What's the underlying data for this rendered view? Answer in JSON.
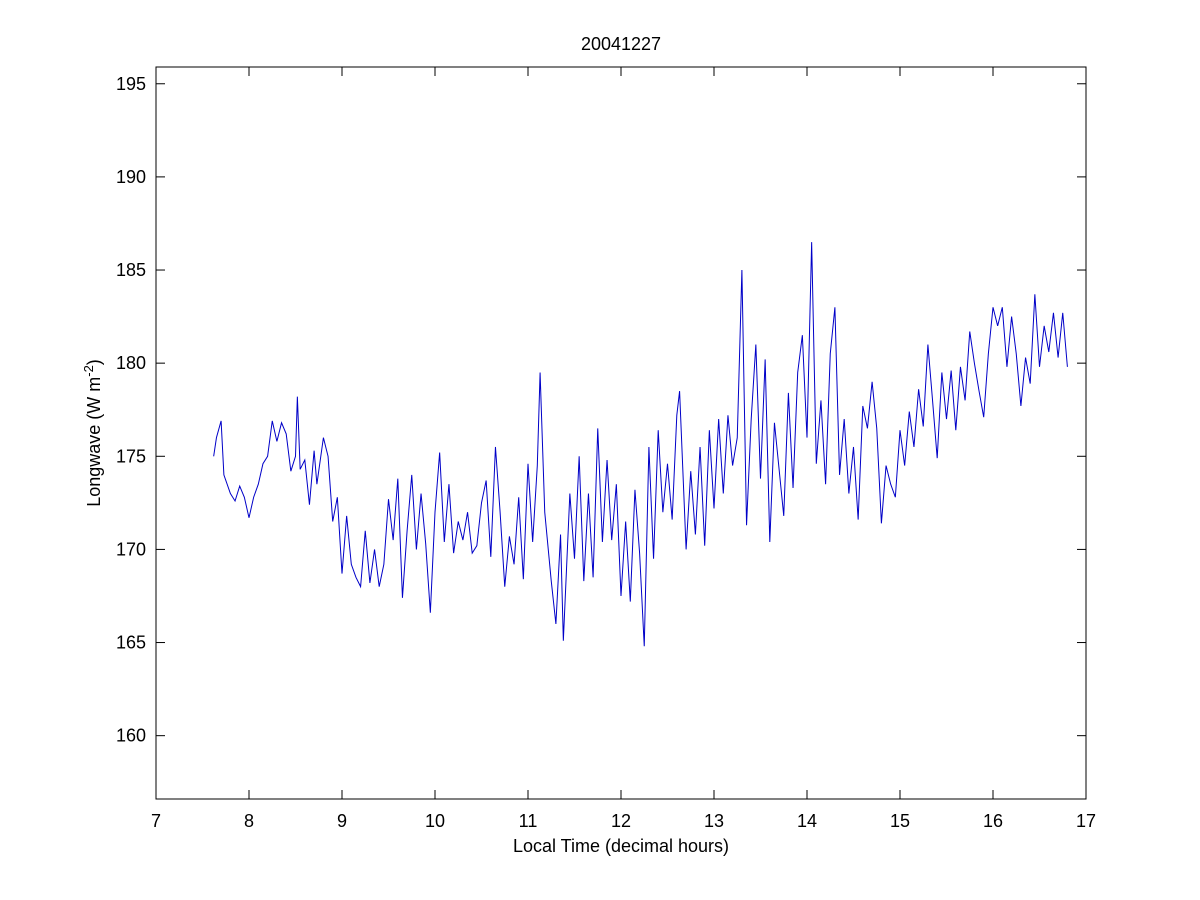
{
  "chart_data": {
    "type": "line",
    "title": "20041227",
    "xlabel": "Local Time (decimal hours)",
    "ylabel": [
      "Longwave (W m",
      "-2",
      ")"
    ],
    "xlim": [
      7,
      17
    ],
    "ylim": [
      156.6,
      195.9
    ],
    "xticks": [
      7,
      8,
      9,
      10,
      11,
      12,
      13,
      14,
      15,
      16,
      17
    ],
    "yticks": [
      160,
      165,
      170,
      175,
      180,
      185,
      190,
      195
    ],
    "grid": false,
    "series": [
      {
        "color": "#0000c8",
        "x": [
          7.62,
          7.65,
          7.7,
          7.73,
          7.8,
          7.85,
          7.9,
          7.95,
          8.0,
          8.05,
          8.1,
          8.15,
          8.2,
          8.25,
          8.3,
          8.35,
          8.4,
          8.45,
          8.5,
          8.52,
          8.55,
          8.6,
          8.65,
          8.7,
          8.73,
          8.8,
          8.85,
          8.9,
          8.95,
          9.0,
          9.05,
          9.1,
          9.15,
          9.2,
          9.25,
          9.3,
          9.35,
          9.4,
          9.45,
          9.5,
          9.55,
          9.6,
          9.65,
          9.7,
          9.75,
          9.8,
          9.85,
          9.9,
          9.95,
          10.0,
          10.05,
          10.1,
          10.15,
          10.2,
          10.25,
          10.3,
          10.35,
          10.4,
          10.45,
          10.5,
          10.55,
          10.6,
          10.65,
          10.7,
          10.75,
          10.8,
          10.85,
          10.9,
          10.95,
          11.0,
          11.05,
          11.1,
          11.13,
          11.18,
          11.25,
          11.3,
          11.35,
          11.38,
          11.45,
          11.5,
          11.55,
          11.6,
          11.65,
          11.7,
          11.75,
          11.8,
          11.85,
          11.9,
          11.95,
          12.0,
          12.05,
          12.1,
          12.15,
          12.2,
          12.25,
          12.3,
          12.35,
          12.4,
          12.45,
          12.5,
          12.55,
          12.6,
          12.63,
          12.7,
          12.75,
          12.8,
          12.85,
          12.9,
          12.95,
          13.0,
          13.05,
          13.1,
          13.15,
          13.2,
          13.25,
          13.3,
          13.35,
          13.4,
          13.45,
          13.5,
          13.55,
          13.6,
          13.65,
          13.7,
          13.75,
          13.8,
          13.85,
          13.9,
          13.95,
          14.0,
          14.05,
          14.1,
          14.15,
          14.2,
          14.25,
          14.3,
          14.35,
          14.4,
          14.45,
          14.5,
          14.55,
          14.6,
          14.65,
          14.7,
          14.75,
          14.8,
          14.85,
          14.9,
          14.95,
          15.0,
          15.05,
          15.1,
          15.15,
          15.2,
          15.25,
          15.3,
          15.35,
          15.4,
          15.45,
          15.5,
          15.55,
          15.6,
          15.65,
          15.7,
          15.75,
          15.8,
          15.85,
          15.9,
          15.95,
          16.0,
          16.05,
          16.1,
          16.15,
          16.2,
          16.25,
          16.3,
          16.35,
          16.4,
          16.45,
          16.5,
          16.55,
          16.6,
          16.65,
          16.7,
          16.75,
          16.8
        ],
        "values": [
          175,
          176,
          176.9,
          174,
          173,
          172.6,
          173.4,
          172.8,
          171.7,
          172.8,
          173.5,
          174.6,
          175,
          176.9,
          175.8,
          176.8,
          176.2,
          174.2,
          175,
          178.2,
          174.3,
          174.8,
          172.4,
          175.3,
          173.5,
          176,
          175,
          171.5,
          172.8,
          168.7,
          171.8,
          169.2,
          168.5,
          168,
          171,
          168.2,
          170,
          168,
          169.2,
          172.7,
          170.5,
          173.8,
          167.4,
          171,
          174,
          170,
          173,
          170.3,
          166.6,
          172,
          175.2,
          170.4,
          173.5,
          169.8,
          171.5,
          170.5,
          172,
          169.8,
          170.2,
          172.5,
          173.7,
          169.6,
          175.5,
          172,
          168,
          170.7,
          169.2,
          172.8,
          168.4,
          174.6,
          170.4,
          174.5,
          179.5,
          172,
          168.3,
          166,
          170.8,
          165.1,
          173,
          169.5,
          175,
          168.3,
          173,
          168.5,
          176.5,
          170.4,
          174.8,
          170.5,
          173.5,
          167.5,
          171.5,
          167.2,
          173.2,
          169.8,
          164.8,
          175.5,
          169.5,
          176.4,
          172,
          174.6,
          171.6,
          177.2,
          178.5,
          170,
          174.2,
          170.8,
          175.5,
          170.2,
          176.4,
          172.2,
          177,
          173,
          177.2,
          174.5,
          176,
          185,
          171.3,
          177,
          181,
          173.8,
          180.2,
          170.4,
          176.8,
          174.3,
          171.8,
          178.4,
          173.3,
          179.5,
          181.5,
          176,
          186.5,
          174.6,
          178,
          173.5,
          180.5,
          183,
          174,
          177,
          173,
          175.5,
          171.6,
          177.7,
          176.5,
          179,
          176.5,
          171.4,
          174.5,
          173.5,
          172.8,
          176.4,
          174.5,
          177.4,
          175.5,
          178.6,
          176.6,
          181,
          178,
          174.9,
          179.5,
          177,
          179.6,
          176.4,
          179.8,
          178,
          181.7,
          180,
          178.5,
          177.1,
          180.5,
          183,
          182,
          183,
          179.8,
          182.5,
          180.5,
          177.7,
          180.3,
          178.9,
          183.7,
          179.8,
          182,
          180.6,
          182.7,
          180.3,
          182.7,
          179.8
        ]
      }
    ]
  }
}
